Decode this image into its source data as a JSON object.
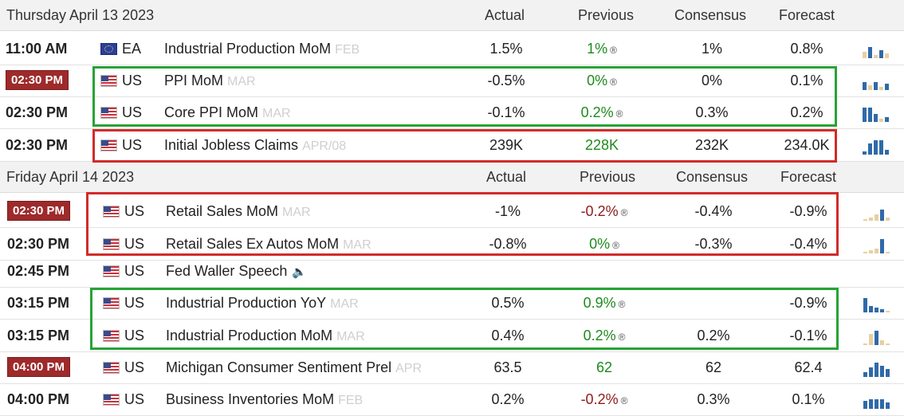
{
  "days": [
    {
      "date": "Thursday April 13 2023",
      "columns": {
        "actual": "Actual",
        "previous": "Previous",
        "consensus": "Consensus",
        "forecast": "Forecast"
      },
      "rows": [
        {
          "time": "11:00 AM",
          "highlight": false,
          "country": "EA",
          "flag": "eu-flag-icon",
          "event": "Industrial Production MoM",
          "period": "FEB",
          "actual": "1.5%",
          "previous": "1%",
          "previous_color": "green",
          "revised": "®",
          "consensus": "1%",
          "forecast": "0.8%"
        },
        {
          "time": "02:30 PM",
          "highlight": true,
          "country": "US",
          "flag": "us-flag-icon",
          "event": "PPI MoM",
          "period": "MAR",
          "actual": "-0.5%",
          "previous": "0%",
          "previous_color": "green",
          "revised": "®",
          "consensus": "0%",
          "forecast": "0.1%"
        },
        {
          "time": "02:30 PM",
          "highlight": false,
          "country": "US",
          "flag": "us-flag-icon",
          "event": "Core PPI MoM",
          "period": "MAR",
          "actual": "-0.1%",
          "previous": "0.2%",
          "previous_color": "green",
          "revised": "®",
          "consensus": "0.3%",
          "forecast": "0.2%"
        },
        {
          "time": "02:30 PM",
          "highlight": false,
          "country": "US",
          "flag": "us-flag-icon",
          "event": "Initial Jobless Claims",
          "period": "APR/08",
          "actual": "239K",
          "previous": "228K",
          "previous_color": "green",
          "revised": "",
          "consensus": "232K",
          "forecast": "234.0K"
        }
      ]
    },
    {
      "date": "Friday April 14 2023",
      "columns": {
        "actual": "Actual",
        "previous": "Previous",
        "consensus": "Consensus",
        "forecast": "Forecast"
      },
      "rows": [
        {
          "time": "02:30 PM",
          "highlight": true,
          "country": "US",
          "flag": "us-flag-icon",
          "event": "Retail Sales MoM",
          "period": "MAR",
          "actual": "-1%",
          "previous": "-0.2%",
          "previous_color": "red",
          "revised": "®",
          "consensus": "-0.4%",
          "forecast": "-0.9%"
        },
        {
          "time": "02:30 PM",
          "highlight": false,
          "country": "US",
          "flag": "us-flag-icon",
          "event": "Retail Sales Ex Autos MoM",
          "period": "MAR",
          "actual": "-0.8%",
          "previous": "0%",
          "previous_color": "green",
          "revised": "®",
          "consensus": "-0.3%",
          "forecast": "-0.4%"
        },
        {
          "time": "02:45 PM",
          "highlight": false,
          "country": "US",
          "flag": "us-flag-icon",
          "event": "Fed Waller Speech",
          "period": "",
          "speaker": true,
          "actual": "",
          "previous": "",
          "previous_color": "green",
          "revised": "",
          "consensus": "",
          "forecast": ""
        },
        {
          "time": "03:15 PM",
          "highlight": false,
          "country": "US",
          "flag": "us-flag-icon",
          "event": "Industrial Production YoY",
          "period": "MAR",
          "actual": "0.5%",
          "previous": "0.9%",
          "previous_color": "green",
          "revised": "®",
          "consensus": "",
          "forecast": "-0.9%"
        },
        {
          "time": "03:15 PM",
          "highlight": false,
          "country": "US",
          "flag": "us-flag-icon",
          "event": "Industrial Production MoM",
          "period": "MAR",
          "actual": "0.4%",
          "previous": "0.2%",
          "previous_color": "green",
          "revised": "®",
          "consensus": "0.2%",
          "forecast": "-0.1%"
        },
        {
          "time": "04:00 PM",
          "highlight": true,
          "country": "US",
          "flag": "us-flag-icon",
          "event": "Michigan Consumer Sentiment Prel",
          "period": "APR",
          "actual": "63.5",
          "previous": "62",
          "previous_color": "green",
          "revised": "",
          "consensus": "62",
          "forecast": "62.4"
        },
        {
          "time": "04:00 PM",
          "highlight": false,
          "country": "US",
          "flag": "us-flag-icon",
          "event": "Business Inventories MoM",
          "period": "FEB",
          "actual": "0.2%",
          "previous": "-0.2%",
          "previous_color": "red",
          "revised": "®",
          "consensus": "0.3%",
          "forecast": "0.1%"
        }
      ]
    }
  ],
  "colors": {
    "badge": "#9e2a2b",
    "green_text": "#1f8a1f",
    "red_text": "#8e1b1b",
    "box_green": "#27a336",
    "box_red": "#d12b2b",
    "spark_blue": "#2f6aa8",
    "spark_tan": "#e8cfa1"
  }
}
